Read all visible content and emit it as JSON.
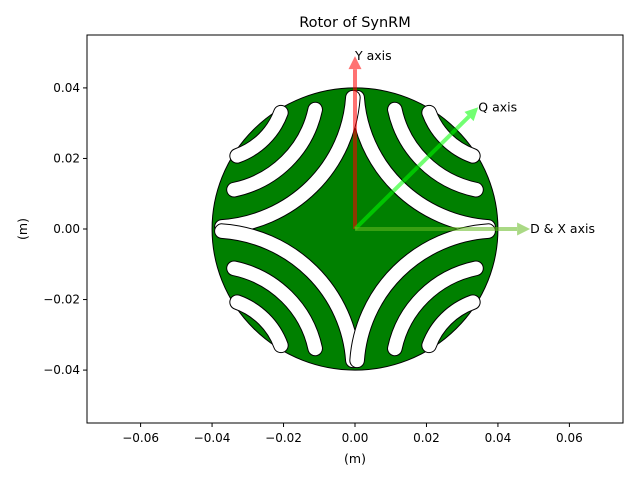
{
  "chart_data": {
    "type": "scatter",
    "title": "Rotor of SynRM",
    "xlabel": "(m)",
    "ylabel": "(m)",
    "xlim": [
      -0.075,
      0.075
    ],
    "ylim": [
      -0.055,
      0.055
    ],
    "xticks": [
      -0.06,
      -0.04,
      -0.02,
      0.0,
      0.02,
      0.04,
      0.06
    ],
    "xtick_labels": [
      "−0.06",
      "−0.04",
      "−0.02",
      "0.00",
      "0.02",
      "0.04",
      "0.06"
    ],
    "yticks": [
      -0.04,
      -0.02,
      0.0,
      0.02,
      0.04
    ],
    "ytick_labels": [
      "−0.04",
      "−0.02",
      "0.00",
      "0.02",
      "0.04"
    ],
    "grid": false,
    "rotor": {
      "center": [
        0,
        0
      ],
      "outer_radius": 0.04,
      "fill_color": "#008000",
      "edge_color": "#000000",
      "pole_pairs": 2,
      "barrier_color": "#ffffff",
      "barriers": [
        {
          "radius": 0.0395,
          "half_width": 0.0019,
          "span_deg": 82
        },
        {
          "radius": 0.0295,
          "half_width": 0.0019,
          "span_deg": 66
        },
        {
          "radius": 0.0205,
          "half_width": 0.0019,
          "span_deg": 50
        }
      ]
    },
    "axes_arrows": [
      {
        "label": "Y axis",
        "from": [
          0,
          0
        ],
        "to": [
          0,
          0.049
        ],
        "color": "#ff0000"
      },
      {
        "label": "Q axis",
        "from": [
          0,
          0
        ],
        "to": [
          0.0345,
          0.0345
        ],
        "color": "#00ff00"
      },
      {
        "label": "D & X axis",
        "from": [
          0,
          0
        ],
        "to": [
          0.049,
          0
        ],
        "color": "#66bb22"
      }
    ]
  }
}
